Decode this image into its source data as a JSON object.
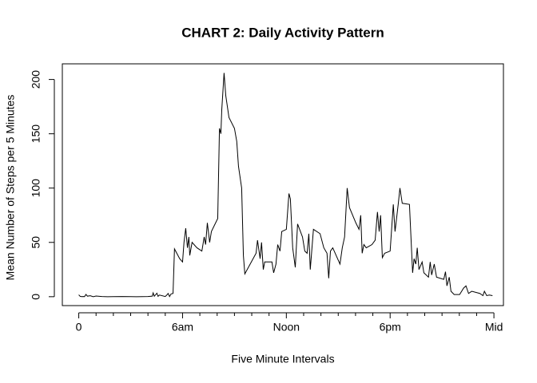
{
  "chart_data": {
    "type": "line",
    "title": "CHART 2: Daily Activity Pattern",
    "x_label": "Five Minute Intervals",
    "y_label": "Mean Number of Steps per 5 Minutes",
    "color": "#000000",
    "x": [
      0,
      5,
      10,
      15,
      20,
      25,
      30,
      40,
      50,
      60,
      80,
      100,
      120,
      150,
      180,
      200,
      240,
      255,
      258,
      262,
      271,
      275,
      280,
      300,
      305,
      310,
      315,
      320,
      327,
      332,
      340,
      350,
      360,
      365,
      371,
      377,
      382,
      385,
      393,
      410,
      427,
      435,
      440,
      446,
      454,
      460,
      482,
      488,
      493,
      496,
      504,
      510,
      521,
      540,
      548,
      554,
      565,
      571,
      576,
      615,
      620,
      629,
      634,
      640,
      645,
      670,
      676,
      684,
      690,
      698,
      704,
      720,
      729,
      734,
      742,
      751,
      759,
      776,
      784,
      792,
      798,
      803,
      814,
      837,
      850,
      861,
      867,
      873,
      881,
      906,
      914,
      922,
      931,
      939,
      961,
      972,
      978,
      983,
      989,
      997,
      1017,
      1028,
      1036,
      1042,
      1047,
      1053,
      1061,
      1080,
      1091,
      1097,
      1108,
      1114,
      1122,
      1147,
      1158,
      1163,
      1169,
      1174,
      1180,
      1191,
      1197,
      1213,
      1219,
      1224,
      1233,
      1241,
      1266,
      1272,
      1277,
      1285,
      1291,
      1302,
      1321,
      1335,
      1343,
      1352,
      1363,
      1391,
      1402,
      1407,
      1415,
      1424,
      1435
    ],
    "values": [
      1.7,
      0.3,
      0.1,
      0.2,
      0.1,
      2.1,
      0.5,
      0.9,
      0,
      0.6,
      0.2,
      0,
      0.1,
      0.2,
      0.1,
      0,
      0.2,
      0.5,
      3.5,
      0.4,
      3.2,
      0.3,
      1.5,
      0.2,
      1.4,
      3,
      0.1,
      2.5,
      3,
      44,
      40,
      35,
      32,
      50,
      63,
      45,
      55,
      38,
      50,
      45,
      42,
      55,
      48,
      68,
      50,
      60,
      72,
      155,
      150,
      172,
      206,
      185,
      165,
      155,
      143,
      120,
      100,
      38,
      21,
      40,
      52,
      35,
      50,
      25,
      32,
      32,
      22,
      30,
      48,
      42,
      60,
      62,
      95,
      90,
      45,
      27,
      67,
      55,
      42,
      40,
      58,
      25,
      62,
      58,
      45,
      40,
      17,
      42,
      45,
      30,
      45,
      55,
      100,
      82,
      68,
      62,
      75,
      40,
      48,
      45,
      48,
      52,
      78,
      60,
      75,
      36,
      40,
      42,
      85,
      60,
      85,
      100,
      86,
      85,
      22,
      35,
      30,
      45,
      25,
      32,
      22,
      18,
      32,
      20,
      30,
      18,
      16,
      23,
      10,
      18,
      5,
      2,
      2,
      8,
      10,
      3,
      5,
      3,
      1,
      5,
      1,
      1.5,
      1
    ],
    "xlim": [
      -57,
      1473
    ],
    "ylim": [
      -8.2,
      214.4
    ],
    "xticks": [
      0,
      {
        "value": 360,
        "label": "6am"
      },
      {
        "value": 720,
        "label": "Noon"
      },
      {
        "value": 1080,
        "label": "6pm"
      },
      {
        "value": 1440,
        "label": "Mid"
      }
    ],
    "xminor_ticks": [
      60,
      120,
      180,
      240,
      300,
      420,
      480,
      540,
      600,
      660,
      780,
      840,
      900,
      960,
      1020,
      1140,
      1200,
      1260,
      1320,
      1380
    ],
    "yticks": [
      0,
      50,
      100,
      150,
      200
    ]
  }
}
